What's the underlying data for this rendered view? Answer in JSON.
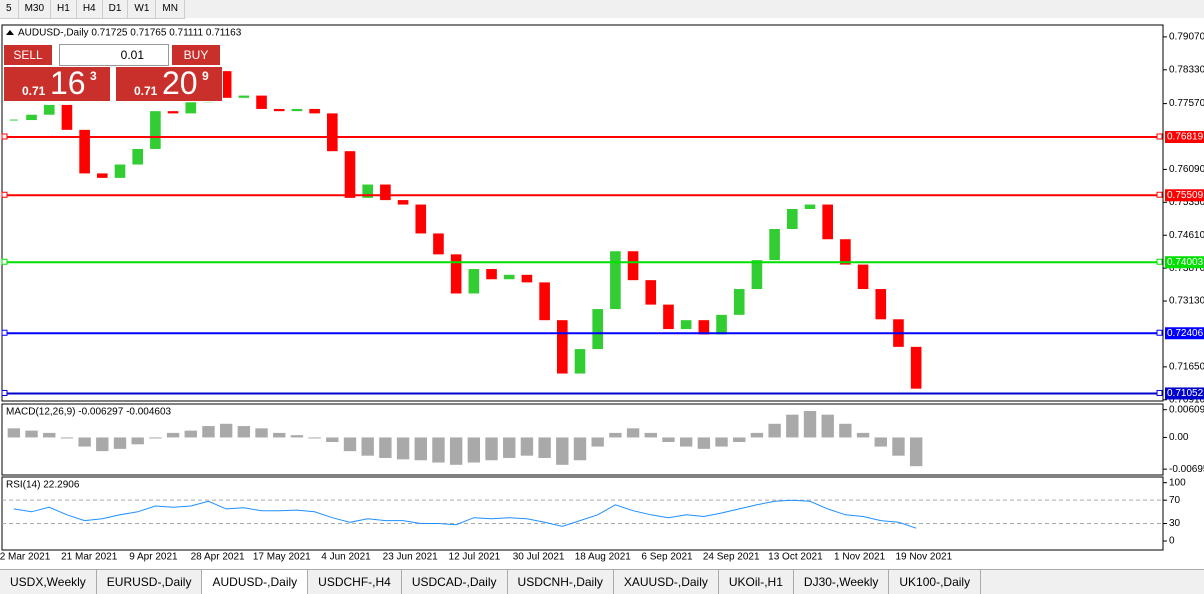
{
  "toolbar": {
    "timeframes": [
      "5",
      "M30",
      "H1",
      "H4",
      "D1",
      "W1",
      "MN"
    ]
  },
  "trade_panel": {
    "sell": "SELL",
    "buy": "BUY",
    "lot": "0.01",
    "sell_price": {
      "big": "0.71",
      "main": "16",
      "small": "3"
    },
    "buy_price": {
      "big": "0.71",
      "main": "20",
      "small": "9"
    }
  },
  "chart_data": [
    {
      "type": "candlestick",
      "title": "AUDUSD-,Daily  0.71725 0.71765 0.71111 0.71163",
      "up_color": "#32cd32",
      "down_color": "#ff0000",
      "closes": [
        0.772,
        0.7732,
        0.7754,
        0.7698,
        0.76,
        0.759,
        0.762,
        0.7655,
        0.774,
        0.7735,
        0.776,
        0.783,
        0.777,
        0.7775,
        0.7745,
        0.774,
        0.7745,
        0.7735,
        0.765,
        0.7545,
        0.7575,
        0.754,
        0.753,
        0.7465,
        0.7418,
        0.733,
        0.7385,
        0.7362,
        0.7372,
        0.7355,
        0.727,
        0.715,
        0.7205,
        0.7295,
        0.7425,
        0.736,
        0.7305,
        0.725,
        0.727,
        0.7238,
        0.7282,
        0.734,
        0.7405,
        0.7475,
        0.752,
        0.753,
        0.7452,
        0.7395,
        0.734,
        0.7272,
        0.721,
        0.7116
      ],
      "ylim": [
        0.7095,
        0.7927
      ],
      "yticks": [
        {
          "value": 0.7907,
          "label": "0.79070"
        },
        {
          "value": 0.7833,
          "label": "0.78330"
        },
        {
          "value": 0.7757,
          "label": "0.77570"
        },
        {
          "value": 0.7609,
          "label": "0.76090"
        },
        {
          "value": 0.7535,
          "label": "0.75350"
        },
        {
          "value": 0.7461,
          "label": "0.74610"
        },
        {
          "value": 0.7387,
          "label": "0.73870"
        },
        {
          "value": 0.7313,
          "label": "0.73130"
        },
        {
          "value": 0.7165,
          "label": "0.71650"
        },
        {
          "value": 0.7091,
          "label": "0.70910"
        }
      ],
      "levels": [
        {
          "value": 0.76819,
          "label": "0.76819",
          "color": "#ff0000"
        },
        {
          "value": 0.75509,
          "label": "0.75509",
          "color": "#ff0000"
        },
        {
          "value": 0.74003,
          "label": "0.74003",
          "color": "#00e000"
        },
        {
          "value": 0.72406,
          "label": "0.72406",
          "color": "#0000ff"
        },
        {
          "value": 0.71052,
          "label": "0.71052",
          "color": "#0000cc"
        }
      ],
      "x_labels": [
        "2 Mar 2021",
        "21 Mar 2021",
        "9 Apr 2021",
        "28 Apr 2021",
        "17 May 2021",
        "4 Jun 2021",
        "23 Jun 2021",
        "12 Jul 2021",
        "30 Jul 2021",
        "18 Aug 2021",
        "6 Sep 2021",
        "24 Sep 2021",
        "13 Oct 2021",
        "1 Nov 2021",
        "19 Nov 2021"
      ]
    },
    {
      "type": "bar",
      "title": "MACD(12,26,9) -0.006297 -0.004603",
      "color": "#a9a9a9",
      "values": [
        0.002,
        0.0015,
        0.001,
        0.0,
        -0.002,
        -0.003,
        -0.0025,
        -0.0015,
        0.0,
        0.001,
        0.0015,
        0.0025,
        0.003,
        0.0025,
        0.002,
        0.001,
        0.0005,
        0.0,
        -0.001,
        -0.003,
        -0.004,
        -0.0045,
        -0.0048,
        -0.005,
        -0.0055,
        -0.006,
        -0.0055,
        -0.005,
        -0.0045,
        -0.004,
        -0.0045,
        -0.006,
        -0.005,
        -0.002,
        0.001,
        0.002,
        0.001,
        -0.001,
        -0.002,
        -0.0025,
        -0.002,
        -0.001,
        0.001,
        0.003,
        0.005,
        0.0058,
        0.005,
        0.003,
        0.001,
        -0.002,
        -0.004,
        -0.0063
      ],
      "ylim": [
        -0.0078,
        0.0069
      ],
      "yticks": [
        {
          "value": 0.006094,
          "label": "0.006094"
        },
        {
          "value": 0,
          "label": "0.00"
        },
        {
          "value": -0.006953,
          "label": "-0.006953"
        }
      ]
    },
    {
      "type": "line",
      "title": "RSI(14) 22.2906",
      "color": "#1e90ff",
      "values": [
        55,
        50,
        58,
        45,
        35,
        38,
        45,
        50,
        60,
        58,
        60,
        68,
        55,
        57,
        52,
        52,
        53,
        50,
        40,
        32,
        38,
        35,
        35,
        30,
        30,
        28,
        40,
        38,
        40,
        38,
        32,
        25,
        35,
        45,
        62,
        52,
        45,
        40,
        45,
        42,
        48,
        55,
        62,
        68,
        70,
        68,
        55,
        45,
        42,
        35,
        32,
        22
      ],
      "ylim": [
        -12,
        108
      ],
      "yticks": [
        100,
        70,
        30,
        0
      ],
      "levels": [
        70,
        30
      ]
    }
  ],
  "tabs": [
    "USDX,Weekly",
    "EURUSD-,Daily",
    "AUDUSD-,Daily",
    "USDCHF-,H4",
    "USDCAD-,Daily",
    "USDCNH-,Daily",
    "XAUUSD-,Daily",
    "UKOil-,H1",
    "DJ30-,Weekly",
    "UK100-,Daily"
  ],
  "active_tab": "AUDUSD-,Daily"
}
